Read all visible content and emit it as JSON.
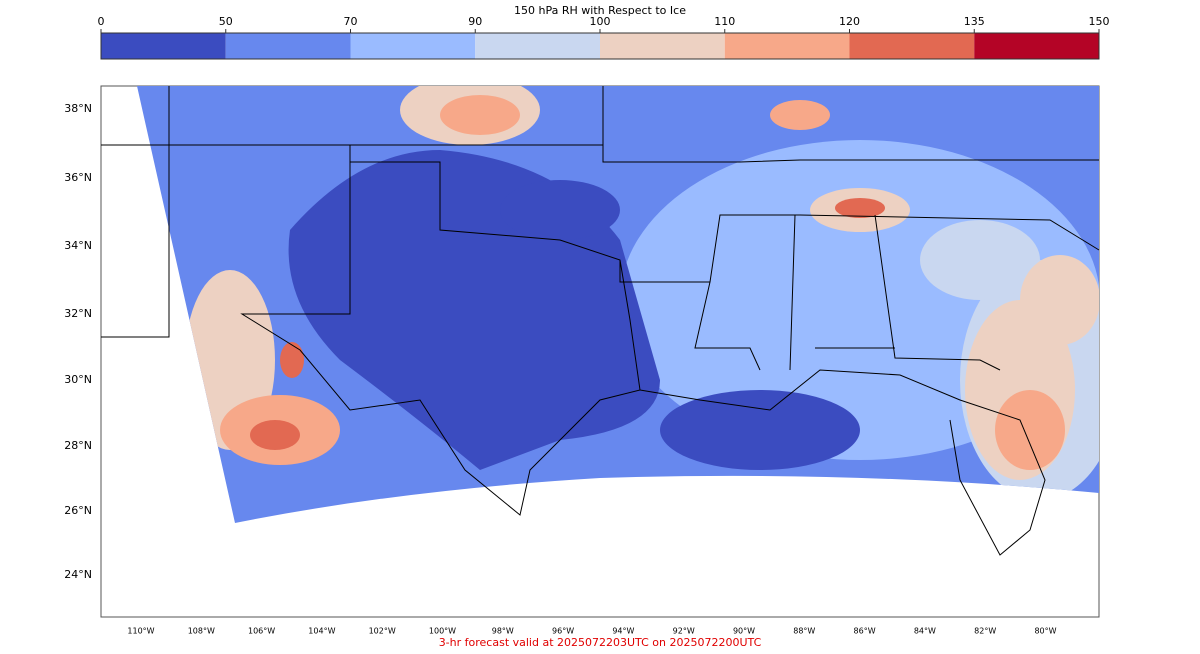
{
  "colorbar": {
    "title": "150 hPa RH with Respect to Ice",
    "ticks": [
      0,
      50,
      70,
      90,
      100,
      110,
      120,
      135,
      150
    ],
    "colors": [
      "#3b4cc0",
      "#6788ee",
      "#9abbff",
      "#c9d7f0",
      "#edd1c2",
      "#f7a889",
      "#e26952",
      "#b40426"
    ]
  },
  "lat_labels": [
    "38°N",
    "36°N",
    "34°N",
    "32°N",
    "30°N",
    "28°N",
    "26°N",
    "24°N"
  ],
  "lon_labels": [
    "110°W",
    "108°W",
    "106°W",
    "104°W",
    "102°W",
    "100°W",
    "98°W",
    "96°W",
    "94°W",
    "92°W",
    "90°W",
    "88°W",
    "86°W",
    "84°W",
    "82°W",
    "80°W"
  ],
  "footer": "3-hr forecast valid at 2025072203UTC on 2025072200UTC"
}
